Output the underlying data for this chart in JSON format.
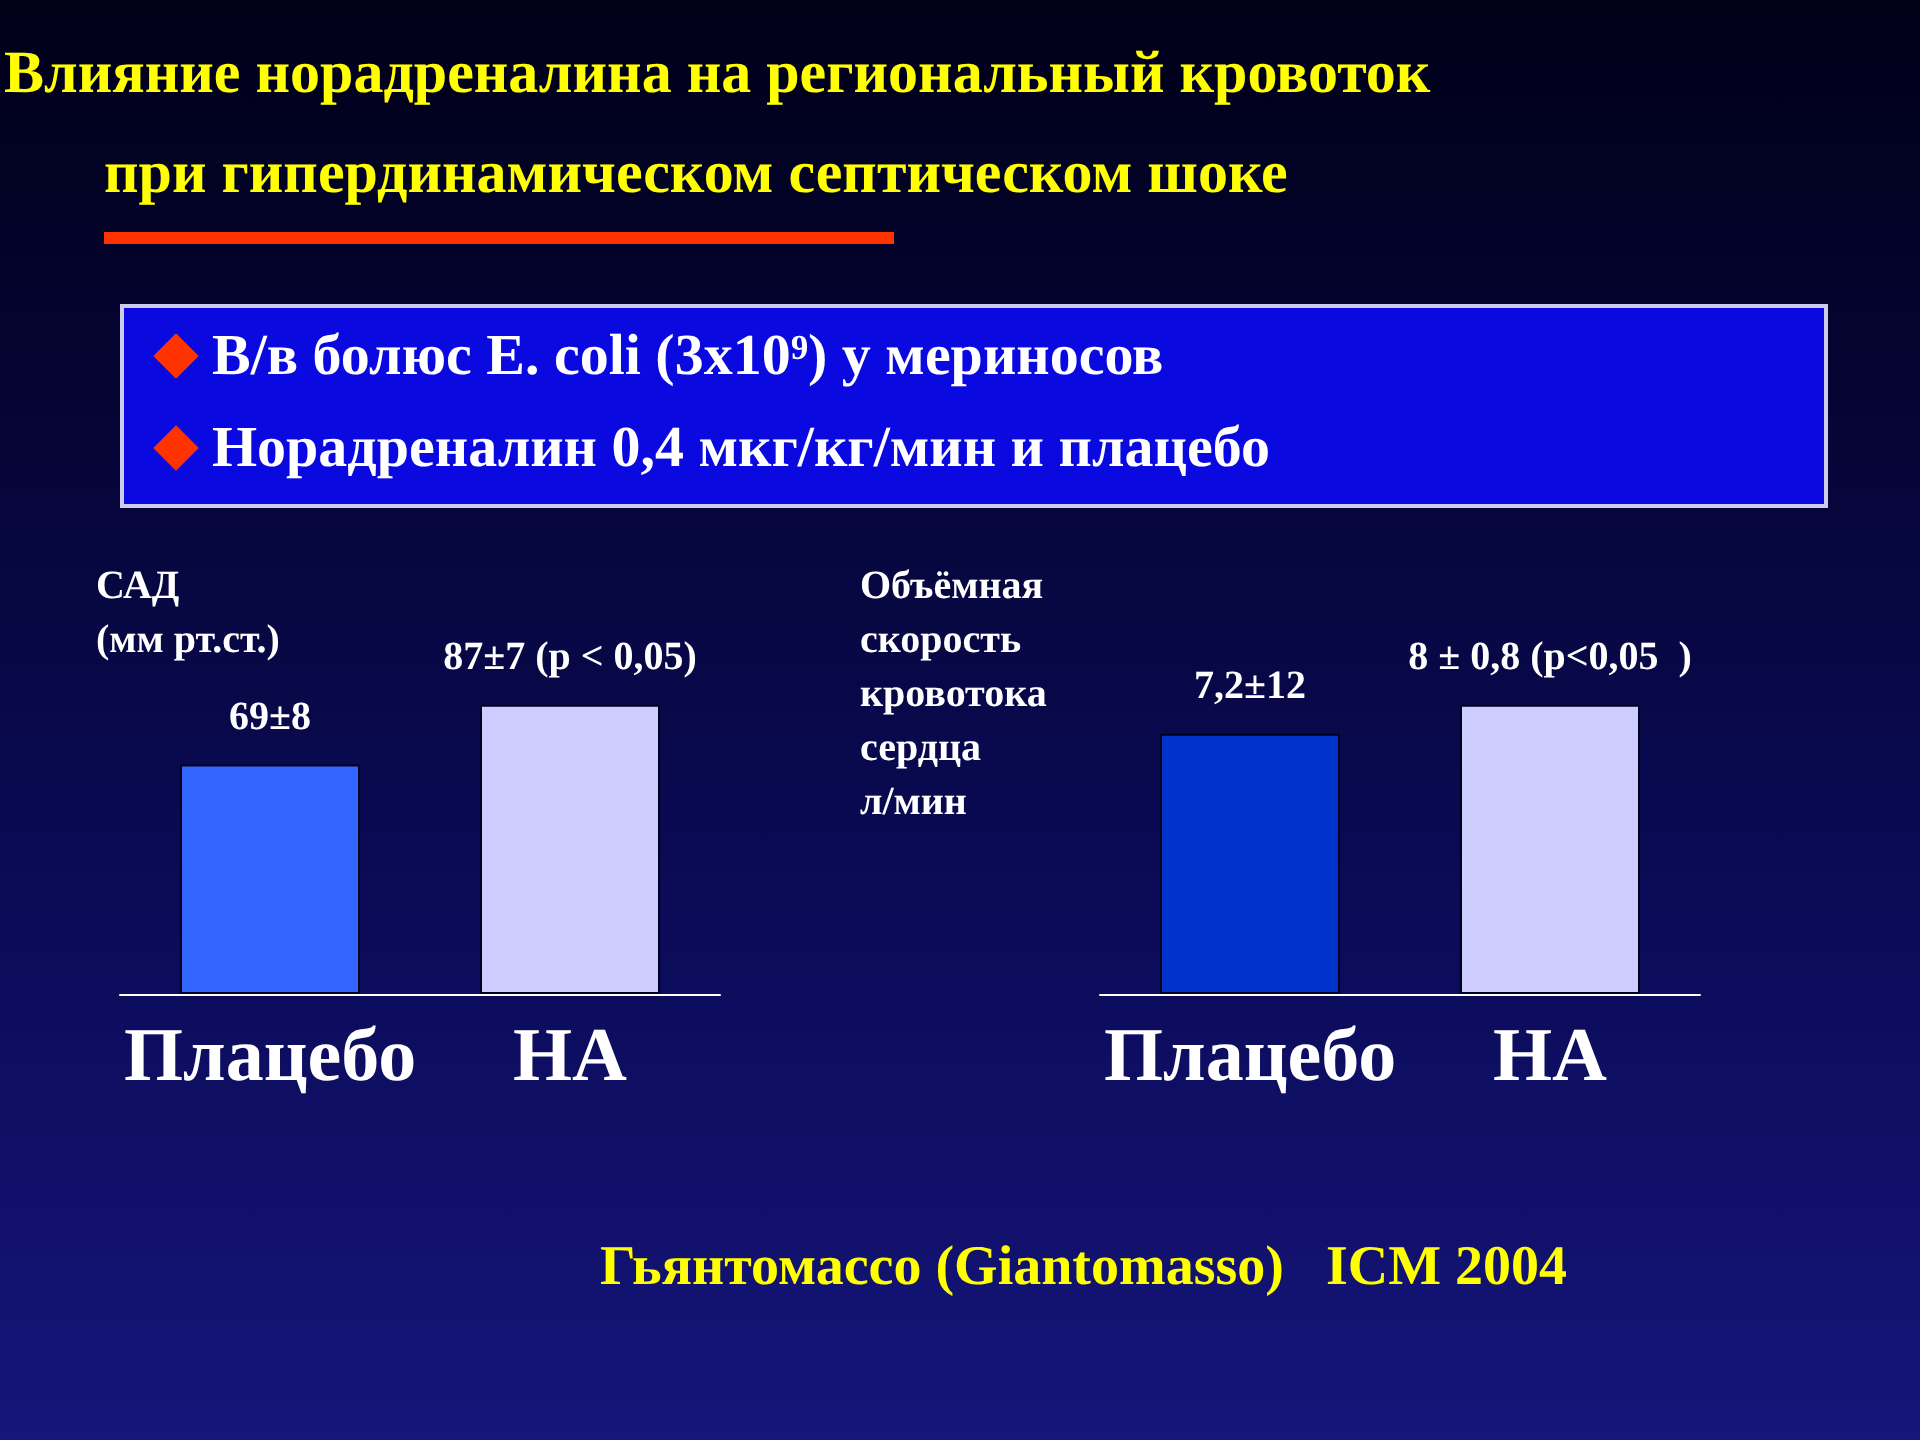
{
  "chart_data": [
    {
      "type": "bar",
      "title": "Влияние норадреналина на региональный кровоток\nпри гипердинамическом септическом шоке",
      "annotations": [
        "В/в болюс E. coli (3x10⁹) у мериносов",
        "Норадреналин 0,4 мкг/кг/мин и плацебо"
      ],
      "ylabel": "САД\n(мм рт.ст.)",
      "categories": [
        "Плацебо",
        "НА"
      ],
      "values": [
        69,
        87
      ],
      "colors": [
        "#3366ff",
        "#ccccff"
      ],
      "value_labels": [
        "69±8",
        "87±7 (p < 0,05)"
      ]
    },
    {
      "type": "bar",
      "annotations": [
        "Гьянтомассо (Giantomasso)   ICM 2004"
      ],
      "ylabel": "Объёмная\nскорость\nкровотока\nсердца\nл/мин",
      "categories": [
        "Плацебо",
        "НА"
      ],
      "values": [
        7.2,
        8
      ],
      "colors": [
        "#0033cc",
        "#ccccff"
      ],
      "value_labels": [
        "7,2±12",
        "8 ± 0,8 (p<0,05  )"
      ]
    }
  ]
}
